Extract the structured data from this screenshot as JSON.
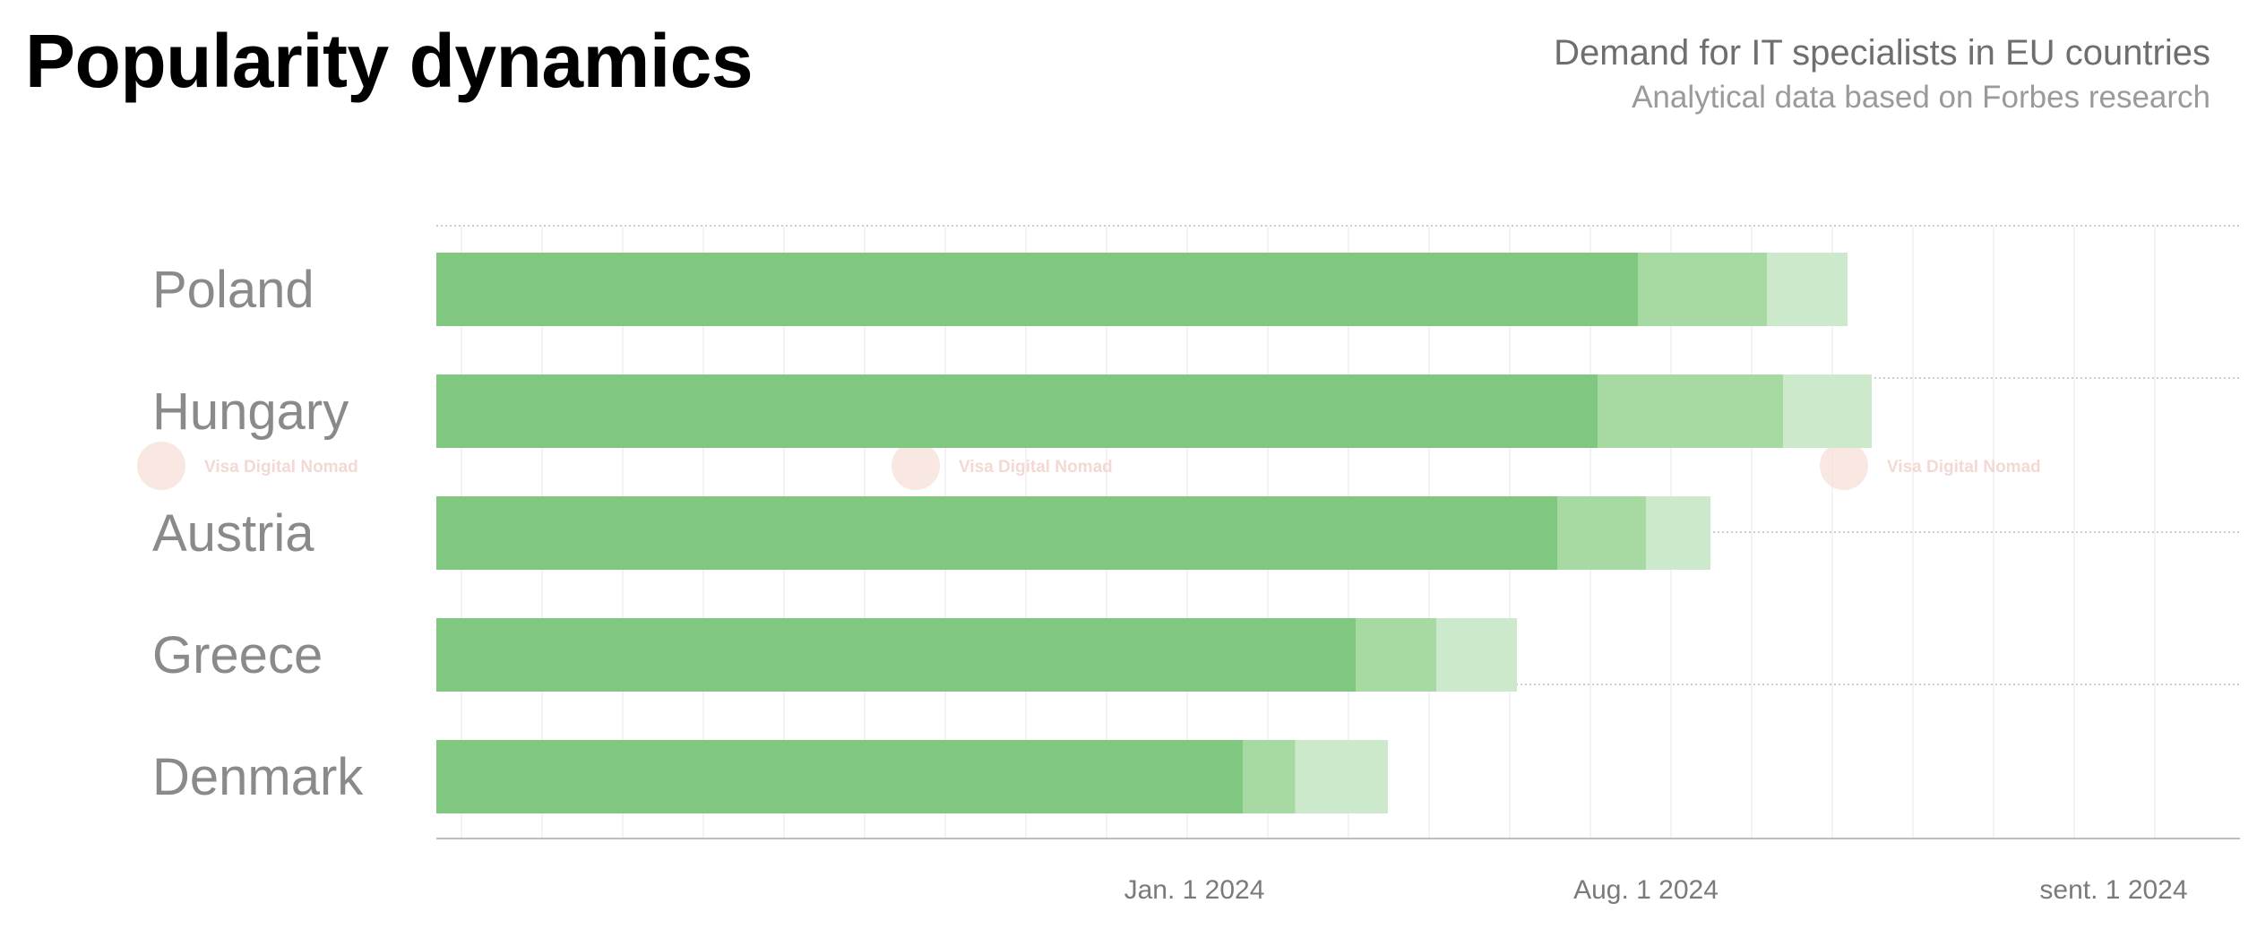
{
  "header": {
    "title": "Popularity dynamics",
    "subtitle": "Demand for IT specialists in EU countries",
    "subtitle2": "Analytical data based on Forbes research"
  },
  "watermark": {
    "text": "Visa Digital Nomad"
  },
  "colors": {
    "segment_dark": "#80c77f",
    "segment_mid": "#a7d9a3",
    "segment_light": "#cde9cb",
    "axis": "#bdbdbd",
    "grid": "#efefef",
    "watermark": "#f6ddd6"
  },
  "chart_data": {
    "type": "bar",
    "orientation": "horizontal",
    "stacked": true,
    "categories": [
      "Poland",
      "Hungary",
      "Austria",
      "Greece",
      "Denmark"
    ],
    "series": [
      {
        "values": [
          14.9,
          14.4,
          13.9,
          11.4,
          10.0
        ]
      },
      {
        "values": [
          1.6,
          2.3,
          1.1,
          1.0,
          0.65
        ]
      },
      {
        "values": [
          1.0,
          1.1,
          0.8,
          1.0,
          1.15
        ]
      }
    ],
    "x_ticks": [
      {
        "value": 9.4,
        "label": "Jan. 1 2024"
      },
      {
        "value": 15.0,
        "label": "Aug. 1 2024"
      },
      {
        "value": 20.8,
        "label": "sent. 1 2024"
      }
    ],
    "xlim": [
      0,
      22.5
    ],
    "grid": "vertical-minor",
    "legend": "none"
  }
}
